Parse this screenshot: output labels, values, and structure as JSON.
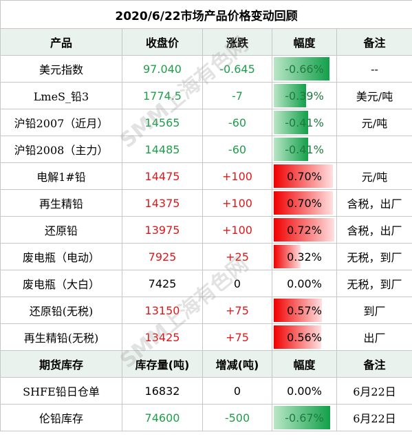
{
  "title": "2020/6/22市场产品价格变动回顾",
  "headers": [
    "产品",
    "收盘价",
    "涨跌",
    "幅度",
    "备注"
  ],
  "rows": [
    {
      "name": "美元指数",
      "price": "97.040",
      "change": "-0.645",
      "pct": "-0.66%",
      "pct_value": -0.66,
      "note": "--",
      "dir": "down"
    },
    {
      "name": "LmeS_铅3",
      "price": "1774.5",
      "change": "-7",
      "pct": "-0.39%",
      "pct_value": -0.39,
      "note": "美元/吨",
      "dir": "down"
    },
    {
      "name": "沪铅2007（近月）",
      "price": "14565",
      "change": "-60",
      "pct": "-0.41%",
      "pct_value": -0.41,
      "note": "元/吨",
      "dir": "down"
    },
    {
      "name": "沪铅2008（主力）",
      "price": "14485",
      "change": "-60",
      "pct": "-0.41%",
      "pct_value": -0.41,
      "note": "",
      "dir": "down"
    },
    {
      "name": "电解1#铅",
      "price": "14475",
      "change": "+100",
      "pct": "0.70%",
      "pct_value": 0.7,
      "note": "元/吨",
      "dir": "up"
    },
    {
      "name": "再生精铅",
      "price": "14375",
      "change": "+100",
      "pct": "0.70%",
      "pct_value": 0.7,
      "note": "含税，出厂",
      "dir": "up"
    },
    {
      "name": "还原铅",
      "price": "13975",
      "change": "+100",
      "pct": "0.72%",
      "pct_value": 0.72,
      "note": "含税，出厂",
      "dir": "up"
    },
    {
      "name": "废电瓶（电动）",
      "price": "7925",
      "change": "+25",
      "pct": "0.32%",
      "pct_value": 0.32,
      "note": "无税，到厂",
      "dir": "up"
    },
    {
      "name": "废电瓶（大白）",
      "price": "7425",
      "change": "0",
      "pct": "0.00%",
      "pct_value": 0.0,
      "note": "无税，到厂",
      "dir": "flat"
    },
    {
      "name": "还原铅(无税)",
      "price": "13150",
      "change": "+75",
      "pct": "0.57%",
      "pct_value": 0.57,
      "note": "到厂",
      "dir": "up"
    },
    {
      "name": "再生精铅(无税)",
      "price": "13425",
      "change": "+75",
      "pct": "0.56%",
      "pct_value": 0.56,
      "note": "出厂",
      "dir": "up"
    }
  ],
  "inventory_headers": [
    "期货库存",
    "库存量(吨)",
    "增减(吨)",
    "幅度",
    "备注"
  ],
  "inventory_rows": [
    {
      "name": "SHFE铅日仓单",
      "price": "16832",
      "change": "0",
      "pct": "0.00%",
      "pct_value": 0.0,
      "note": "6月22日",
      "dir": "flat"
    },
    {
      "name": "伦铅库存",
      "price": "74600",
      "change": "-500",
      "pct": "-0.67%",
      "pct_value": -0.67,
      "note": "6月22日",
      "dir": "down"
    }
  ],
  "watermark": "SMM上海有色网",
  "colors": {
    "up": "#e0171a",
    "down": "#1e9e4a",
    "bar_up": "#f00000",
    "bar_down": "#12a04a"
  }
}
